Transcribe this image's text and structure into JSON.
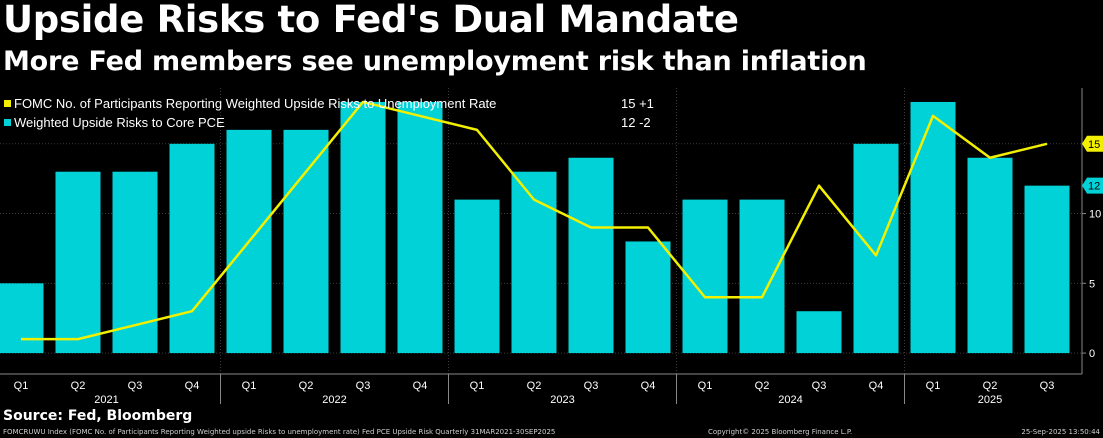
{
  "header": {
    "title": "Upside Risks to Fed's Dual Mandate",
    "subtitle": "More Fed members see unemployment risk than inflation"
  },
  "source": "Source: Fed, Bloomberg",
  "footer": {
    "left": "FOMCRUWU Index (FOMC No. of Participants Reporting Weighted upside Risks to unemployment rate) Fed PCE Upside Risk  Quarterly 31MAR2021-30SEP2025",
    "middle": "Copyright© 2025 Bloomberg Finance L.P.",
    "right": "25-Sep-2025 13:50:44"
  },
  "colors": {
    "bar": "#00D2D8",
    "line": "#F2F000",
    "background": "#000000",
    "grid": "#3a3a3a",
    "axis_text": "#ffffff"
  },
  "chart_data": {
    "type": "bar",
    "title": "Upside Risks to Fed's Dual Mandate",
    "xlabel": "",
    "ylabel": "",
    "ylim": [
      -1.5,
      19
    ],
    "yticks": [
      0,
      5,
      10,
      15
    ],
    "grid": true,
    "categories": [
      "Q1",
      "Q2",
      "Q3",
      "Q4",
      "Q1",
      "Q2",
      "Q3",
      "Q4",
      "Q1",
      "Q2",
      "Q3",
      "Q4",
      "Q1",
      "Q2",
      "Q3",
      "Q4",
      "Q1",
      "Q2",
      "Q3"
    ],
    "years": [
      {
        "label": "2021",
        "center_index": 1.5
      },
      {
        "label": "2022",
        "center_index": 5.5
      },
      {
        "label": "2023",
        "center_index": 9.5
      },
      {
        "label": "2024",
        "center_index": 13.5
      },
      {
        "label": "2025",
        "center_index": 17
      }
    ],
    "year_separators_before_index": [
      4,
      8,
      12,
      16
    ],
    "series": [
      {
        "name": "Weighted Upside Risks to Core PCE",
        "kind": "bar",
        "color": "#00D2D8",
        "values": [
          5,
          13,
          13,
          15,
          16,
          16,
          18,
          18,
          11,
          13,
          14,
          8,
          11,
          11,
          3,
          15,
          18,
          14,
          12
        ],
        "last": "12",
        "change": "-2"
      },
      {
        "name": "FOMC No. of Participants Reporting Weighted Upside Risks to Unemployment Rate",
        "kind": "line",
        "color": "#F2F000",
        "values": [
          1,
          1,
          2,
          3,
          8,
          13,
          18,
          17,
          16,
          11,
          9,
          9,
          4,
          4,
          12,
          7,
          17,
          14,
          15
        ],
        "last": "15",
        "change": "+1"
      }
    ],
    "legend_position": "top-left"
  }
}
